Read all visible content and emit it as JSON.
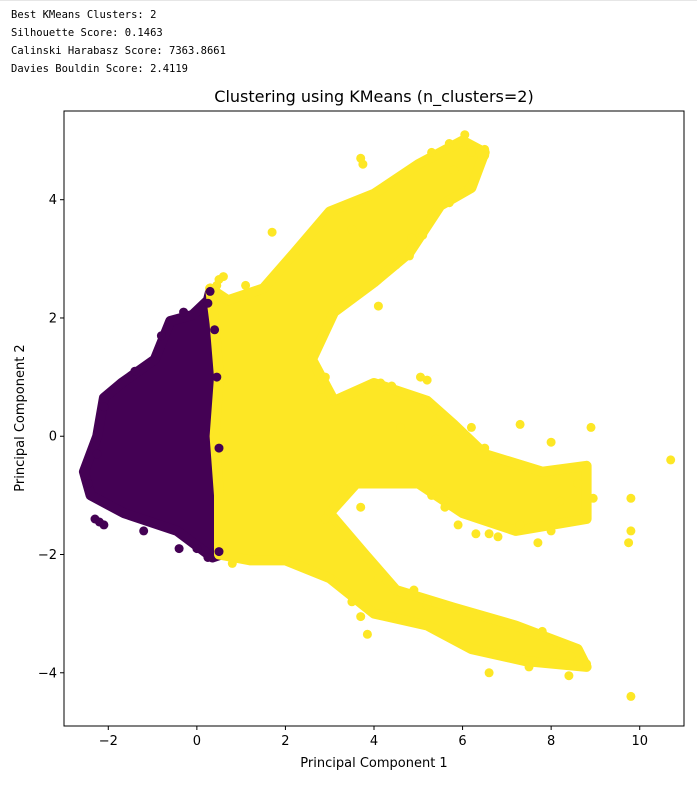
{
  "output_lines": [
    "Best KMeans Clusters: 2",
    "Silhouette Score: 0.1463",
    "Calinski Harabasz Score: 7363.8661",
    "Davies Bouldin Score: 2.4119"
  ],
  "chart_data": {
    "type": "scatter",
    "title": "Clustering using KMeans (n_clusters=2)",
    "xlabel": "Principal Component 1",
    "ylabel": "Principal Component 2",
    "xlim": [
      -3.0,
      11.0
    ],
    "ylim": [
      -4.9,
      5.5
    ],
    "xticks": [
      -2,
      0,
      2,
      4,
      6,
      8,
      10
    ],
    "yticks": [
      -4,
      -2,
      0,
      2,
      4
    ],
    "grid": false,
    "cluster_colors": [
      "#440154",
      "#fde725"
    ],
    "regions": [
      {
        "cluster": 0,
        "polygon": [
          [
            0.3,
            2.45
          ],
          [
            0.25,
            2.3
          ],
          [
            -0.1,
            2.05
          ],
          [
            -0.6,
            1.95
          ],
          [
            -0.95,
            1.3
          ],
          [
            -1.7,
            0.9
          ],
          [
            -2.1,
            0.65
          ],
          [
            -2.25,
            0.0
          ],
          [
            -2.55,
            -0.6
          ],
          [
            -2.4,
            -1.0
          ],
          [
            -1.65,
            -1.3
          ],
          [
            -0.45,
            -1.6
          ],
          [
            0.35,
            -2.05
          ],
          [
            0.55,
            -2.0
          ],
          [
            0.45,
            -1.0
          ],
          [
            0.4,
            -0.1
          ],
          [
            0.45,
            0.9
          ],
          [
            0.4,
            1.9
          ]
        ]
      },
      {
        "cluster": 1,
        "polygon": [
          [
            0.3,
            2.5
          ],
          [
            0.7,
            2.3
          ],
          [
            1.5,
            2.5
          ],
          [
            2.2,
            3.1
          ],
          [
            3.0,
            3.8
          ],
          [
            4.0,
            4.1
          ],
          [
            5.0,
            4.6
          ],
          [
            6.0,
            5.0
          ],
          [
            6.5,
            4.8
          ],
          [
            6.2,
            4.2
          ],
          [
            5.5,
            3.9
          ],
          [
            4.8,
            3.1
          ],
          [
            4.0,
            2.6
          ],
          [
            3.1,
            2.1
          ],
          [
            2.6,
            1.3
          ],
          [
            3.1,
            0.6
          ],
          [
            4.0,
            0.9
          ],
          [
            5.2,
            0.6
          ],
          [
            5.8,
            0.2
          ],
          [
            6.5,
            -0.3
          ],
          [
            7.8,
            -0.6
          ],
          [
            8.8,
            -0.5
          ],
          [
            8.8,
            -1.4
          ],
          [
            7.2,
            -1.6
          ],
          [
            6.0,
            -1.3
          ],
          [
            5.0,
            -0.8
          ],
          [
            3.6,
            -0.8
          ],
          [
            3.0,
            -1.3
          ],
          [
            3.8,
            -2.0
          ],
          [
            4.5,
            -2.6
          ],
          [
            5.8,
            -2.9
          ],
          [
            7.2,
            -3.2
          ],
          [
            8.6,
            -3.6
          ],
          [
            8.8,
            -3.9
          ],
          [
            7.4,
            -3.8
          ],
          [
            6.2,
            -3.6
          ],
          [
            5.2,
            -3.2
          ],
          [
            4.0,
            -3.0
          ],
          [
            3.0,
            -2.4
          ],
          [
            2.0,
            -2.1
          ],
          [
            1.2,
            -2.1
          ],
          [
            0.5,
            -2.0
          ],
          [
            0.5,
            -1.0
          ],
          [
            0.4,
            0.0
          ],
          [
            0.5,
            1.0
          ],
          [
            0.4,
            1.9
          ]
        ]
      }
    ],
    "points": [
      {
        "x": 10.7,
        "y": -0.4,
        "cluster": 1
      },
      {
        "x": 9.8,
        "y": -1.05,
        "cluster": 1
      },
      {
        "x": 9.8,
        "y": -1.6,
        "cluster": 1
      },
      {
        "x": 9.75,
        "y": -1.8,
        "cluster": 1
      },
      {
        "x": 9.8,
        "y": -4.4,
        "cluster": 1
      },
      {
        "x": 8.9,
        "y": 0.15,
        "cluster": 1
      },
      {
        "x": 8.95,
        "y": -1.05,
        "cluster": 1
      },
      {
        "x": 8.8,
        "y": -1.4,
        "cluster": 1
      },
      {
        "x": 8.8,
        "y": -3.85,
        "cluster": 1
      },
      {
        "x": 8.6,
        "y": -3.8,
        "cluster": 1
      },
      {
        "x": 8.4,
        "y": -4.05,
        "cluster": 1
      },
      {
        "x": 8.6,
        "y": -0.8,
        "cluster": 1
      },
      {
        "x": 8.2,
        "y": -1.1,
        "cluster": 1
      },
      {
        "x": 8.0,
        "y": -1.6,
        "cluster": 1
      },
      {
        "x": 7.7,
        "y": -1.8,
        "cluster": 1
      },
      {
        "x": 8.3,
        "y": -3.6,
        "cluster": 1
      },
      {
        "x": 7.8,
        "y": -3.3,
        "cluster": 1
      },
      {
        "x": 7.5,
        "y": -3.9,
        "cluster": 1
      },
      {
        "x": 7.1,
        "y": -3.7,
        "cluster": 1
      },
      {
        "x": 6.6,
        "y": -4.0,
        "cluster": 1
      },
      {
        "x": 7.3,
        "y": -1.5,
        "cluster": 1
      },
      {
        "x": 6.8,
        "y": -1.7,
        "cluster": 1
      },
      {
        "x": 6.6,
        "y": -1.65,
        "cluster": 1
      },
      {
        "x": 6.3,
        "y": -1.65,
        "cluster": 1
      },
      {
        "x": 5.9,
        "y": -1.5,
        "cluster": 1
      },
      {
        "x": 5.6,
        "y": -1.2,
        "cluster": 1
      },
      {
        "x": 5.3,
        "y": -1.0,
        "cluster": 1
      },
      {
        "x": 6.2,
        "y": 0.15,
        "cluster": 1
      },
      {
        "x": 7.3,
        "y": 0.2,
        "cluster": 1
      },
      {
        "x": 8.0,
        "y": -0.1,
        "cluster": 1
      },
      {
        "x": 6.5,
        "y": -0.2,
        "cluster": 1
      },
      {
        "x": 5.5,
        "y": 0.35,
        "cluster": 1
      },
      {
        "x": 5.2,
        "y": 0.95,
        "cluster": 1
      },
      {
        "x": 5.05,
        "y": 1.0,
        "cluster": 1
      },
      {
        "x": 4.4,
        "y": 0.85,
        "cluster": 1
      },
      {
        "x": 4.15,
        "y": 0.9,
        "cluster": 1
      },
      {
        "x": 4.6,
        "y": 0.15,
        "cluster": 1
      },
      {
        "x": 5.4,
        "y": -0.05,
        "cluster": 1
      },
      {
        "x": 4.9,
        "y": -2.6,
        "cluster": 1
      },
      {
        "x": 5.2,
        "y": -2.85,
        "cluster": 1
      },
      {
        "x": 4.4,
        "y": -3.05,
        "cluster": 1
      },
      {
        "x": 4.05,
        "y": -3.0,
        "cluster": 1
      },
      {
        "x": 3.85,
        "y": -3.35,
        "cluster": 1
      },
      {
        "x": 6.05,
        "y": 5.1,
        "cluster": 1
      },
      {
        "x": 5.7,
        "y": 4.95,
        "cluster": 1
      },
      {
        "x": 5.3,
        "y": 4.8,
        "cluster": 1
      },
      {
        "x": 6.5,
        "y": 4.85,
        "cluster": 1
      },
      {
        "x": 6.5,
        "y": 4.75,
        "cluster": 1
      },
      {
        "x": 3.7,
        "y": 4.7,
        "cluster": 1
      },
      {
        "x": 3.75,
        "y": 4.6,
        "cluster": 1
      },
      {
        "x": 6.2,
        "y": 4.8,
        "cluster": 1
      },
      {
        "x": 6.15,
        "y": 4.2,
        "cluster": 1
      },
      {
        "x": 5.8,
        "y": 4.5,
        "cluster": 1
      },
      {
        "x": 5.7,
        "y": 3.95,
        "cluster": 1
      },
      {
        "x": 5.1,
        "y": 3.4,
        "cluster": 1
      },
      {
        "x": 4.85,
        "y": 3.35,
        "cluster": 1
      },
      {
        "x": 4.8,
        "y": 3.05,
        "cluster": 1
      },
      {
        "x": 4.5,
        "y": 2.9,
        "cluster": 1
      },
      {
        "x": 3.5,
        "y": 3.5,
        "cluster": 1
      },
      {
        "x": 1.7,
        "y": 3.45,
        "cluster": 1
      },
      {
        "x": 0.5,
        "y": 2.65,
        "cluster": 1
      },
      {
        "x": 0.6,
        "y": 2.7,
        "cluster": 1
      },
      {
        "x": 0.45,
        "y": 2.55,
        "cluster": 1
      },
      {
        "x": 0.5,
        "y": 2.4,
        "cluster": 1
      },
      {
        "x": 1.1,
        "y": 2.55,
        "cluster": 1
      },
      {
        "x": 4.1,
        "y": 2.2,
        "cluster": 1
      },
      {
        "x": 2.9,
        "y": 1.0,
        "cluster": 1
      },
      {
        "x": 2.8,
        "y": 0.8,
        "cluster": 1
      },
      {
        "x": 3.3,
        "y": -0.9,
        "cluster": 1
      },
      {
        "x": 3.6,
        "y": -0.8,
        "cluster": 1
      },
      {
        "x": 3.7,
        "y": -1.2,
        "cluster": 1
      },
      {
        "x": 3.9,
        "y": -0.8,
        "cluster": 1
      },
      {
        "x": 3.1,
        "y": -1.2,
        "cluster": 1
      },
      {
        "x": 2.9,
        "y": -1.4,
        "cluster": 1
      },
      {
        "x": 3.0,
        "y": -2.4,
        "cluster": 1
      },
      {
        "x": 3.5,
        "y": -2.8,
        "cluster": 1
      },
      {
        "x": 3.7,
        "y": -3.05,
        "cluster": 1
      },
      {
        "x": 4.1,
        "y": -2.4,
        "cluster": 1
      },
      {
        "x": 0.8,
        "y": -2.15,
        "cluster": 1
      },
      {
        "x": 0.3,
        "y": 2.45,
        "cluster": 0
      },
      {
        "x": 0.25,
        "y": 2.25,
        "cluster": 0
      },
      {
        "x": -0.3,
        "y": 2.1,
        "cluster": 0
      },
      {
        "x": -0.8,
        "y": 1.7,
        "cluster": 0
      },
      {
        "x": -1.4,
        "y": 1.1,
        "cluster": 0
      },
      {
        "x": -2.1,
        "y": 0.5,
        "cluster": 0
      },
      {
        "x": -2.25,
        "y": -0.3,
        "cluster": 0
      },
      {
        "x": -2.45,
        "y": -0.8,
        "cluster": 0
      },
      {
        "x": -2.3,
        "y": -1.4,
        "cluster": 0
      },
      {
        "x": -2.1,
        "y": -1.5,
        "cluster": 0
      },
      {
        "x": -2.2,
        "y": -1.45,
        "cluster": 0
      },
      {
        "x": -1.2,
        "y": -1.6,
        "cluster": 0
      },
      {
        "x": -0.4,
        "y": -1.9,
        "cluster": 0
      },
      {
        "x": 0.0,
        "y": -1.9,
        "cluster": 0
      },
      {
        "x": 0.25,
        "y": -2.05,
        "cluster": 0
      },
      {
        "x": 0.5,
        "y": -1.95,
        "cluster": 0
      },
      {
        "x": 0.5,
        "y": -0.2,
        "cluster": 0
      },
      {
        "x": 0.45,
        "y": 1.0,
        "cluster": 0
      },
      {
        "x": 0.4,
        "y": 1.8,
        "cluster": 0
      }
    ]
  }
}
